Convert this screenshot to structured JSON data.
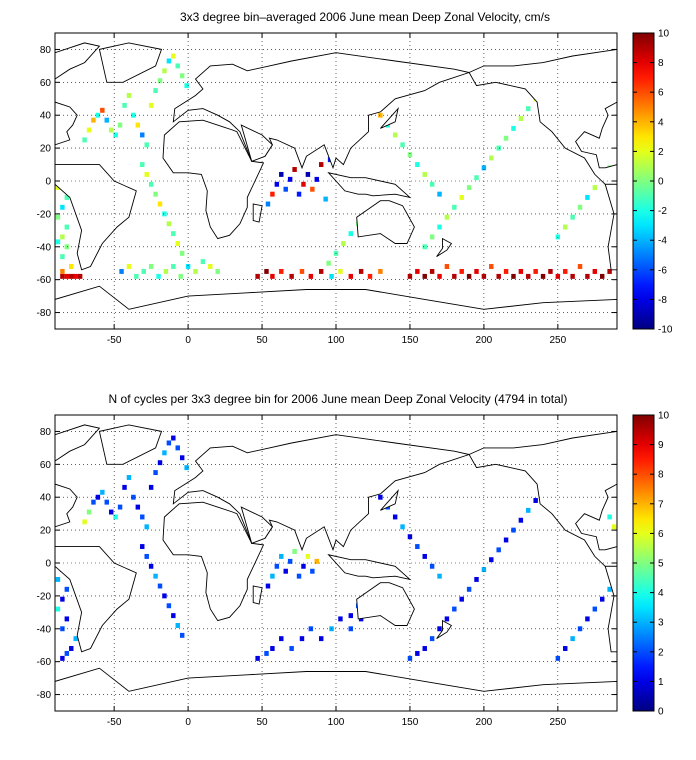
{
  "chart_data": [
    {
      "type": "heatmap",
      "title": "3x3 degree bin–averaged 2006 June mean Deep Zonal Velocity, cm/s",
      "xlabel": "",
      "ylabel": "",
      "xlim": [
        -90,
        290
      ],
      "ylim": [
        -90,
        90
      ],
      "x_ticks": [
        -50,
        0,
        50,
        100,
        150,
        200,
        250
      ],
      "y_ticks": [
        80,
        60,
        40,
        20,
        0,
        -20,
        -40,
        -60,
        -80
      ],
      "colorbar_ticks": [
        10,
        8,
        6,
        4,
        2,
        0,
        -2,
        -4,
        -6,
        -8,
        -10
      ],
      "clim": [
        -10,
        10
      ],
      "colormap": "jet",
      "grid": true,
      "bin_size_deg": 3,
      "cells": [
        [
          -85,
          -58,
          9
        ],
        [
          -82,
          -58,
          8
        ],
        [
          -79,
          -58,
          9
        ],
        [
          -76,
          -58,
          8
        ],
        [
          -73,
          -58,
          9
        ],
        [
          -85,
          -55,
          5
        ],
        [
          -79,
          -52,
          3
        ],
        [
          -85,
          -46,
          -1
        ],
        [
          -82,
          -40,
          0
        ],
        [
          -88,
          -37,
          -2
        ],
        [
          -85,
          -34,
          1
        ],
        [
          -82,
          -28,
          -1
        ],
        [
          -88,
          -22,
          0
        ],
        [
          -85,
          -16,
          -3
        ],
        [
          -82,
          -10,
          -1
        ],
        [
          -88,
          -4,
          2
        ],
        [
          -85,
          2,
          0
        ],
        [
          -70,
          25,
          -1
        ],
        [
          -67,
          31,
          2
        ],
        [
          -64,
          37,
          4
        ],
        [
          -61,
          40,
          -2
        ],
        [
          -58,
          43,
          6
        ],
        [
          -55,
          37,
          -4
        ],
        [
          -52,
          31,
          1
        ],
        [
          -49,
          28,
          -2
        ],
        [
          -46,
          34,
          0
        ],
        [
          -43,
          46,
          -1
        ],
        [
          -40,
          52,
          1
        ],
        [
          -37,
          40,
          -2
        ],
        [
          -34,
          34,
          3
        ],
        [
          -31,
          28,
          -5
        ],
        [
          -28,
          22,
          -1
        ],
        [
          -25,
          46,
          2
        ],
        [
          -22,
          55,
          -1
        ],
        [
          -19,
          61,
          0
        ],
        [
          -16,
          67,
          1
        ],
        [
          -13,
          73,
          -3
        ],
        [
          -10,
          76,
          2
        ],
        [
          -7,
          70,
          -1
        ],
        [
          -4,
          64,
          0
        ],
        [
          -1,
          58,
          -2
        ],
        [
          -31,
          10,
          -1
        ],
        [
          -28,
          4,
          2
        ],
        [
          -25,
          -2,
          -1
        ],
        [
          -22,
          -8,
          0
        ],
        [
          -19,
          -14,
          3
        ],
        [
          -16,
          -20,
          -2
        ],
        [
          -13,
          -26,
          1
        ],
        [
          -10,
          -32,
          -1
        ],
        [
          -7,
          -38,
          2
        ],
        [
          -4,
          -44,
          0
        ],
        [
          -45,
          -55,
          -5
        ],
        [
          -40,
          -52,
          2
        ],
        [
          -35,
          -58,
          -1
        ],
        [
          -30,
          -55,
          -1
        ],
        [
          -25,
          -52,
          0
        ],
        [
          -20,
          -58,
          -2
        ],
        [
          -15,
          -55,
          1
        ],
        [
          -10,
          -52,
          -1
        ],
        [
          -5,
          -58,
          0
        ],
        [
          0,
          -52,
          -3
        ],
        [
          5,
          -55,
          1
        ],
        [
          10,
          -49,
          -1
        ],
        [
          15,
          -52,
          2
        ],
        [
          20,
          -55,
          0
        ],
        [
          60,
          -2,
          -8
        ],
        [
          63,
          4,
          -9
        ],
        [
          66,
          -5,
          -6
        ],
        [
          69,
          1,
          -8
        ],
        [
          72,
          7,
          9
        ],
        [
          75,
          -8,
          -7
        ],
        [
          78,
          -2,
          8
        ],
        [
          81,
          4,
          -9
        ],
        [
          84,
          -5,
          6
        ],
        [
          87,
          1,
          -8
        ],
        [
          57,
          -8,
          7
        ],
        [
          54,
          -14,
          -5
        ],
        [
          90,
          10,
          9
        ],
        [
          93,
          -11,
          -4
        ],
        [
          96,
          13,
          -7
        ],
        [
          47,
          -58,
          9
        ],
        [
          53,
          -55,
          10
        ],
        [
          57,
          -58,
          8
        ],
        [
          63,
          -55,
          7
        ],
        [
          70,
          -58,
          9
        ],
        [
          77,
          -55,
          6
        ],
        [
          83,
          -58,
          8
        ],
        [
          90,
          -55,
          9
        ],
        [
          97,
          -58,
          -3
        ],
        [
          103,
          -55,
          2
        ],
        [
          110,
          -58,
          8
        ],
        [
          117,
          -55,
          9
        ],
        [
          123,
          -58,
          7
        ],
        [
          130,
          -55,
          5
        ],
        [
          150,
          -58,
          9
        ],
        [
          155,
          -55,
          8
        ],
        [
          160,
          -58,
          10
        ],
        [
          165,
          -55,
          9
        ],
        [
          170,
          -58,
          8
        ],
        [
          175,
          -52,
          6
        ],
        [
          180,
          -58,
          9
        ],
        [
          185,
          -55,
          7
        ],
        [
          190,
          -58,
          10
        ],
        [
          195,
          -55,
          8
        ],
        [
          200,
          -58,
          9
        ],
        [
          205,
          -52,
          6
        ],
        [
          210,
          -58,
          9
        ],
        [
          215,
          -55,
          7
        ],
        [
          220,
          -58,
          10
        ],
        [
          225,
          -55,
          8
        ],
        [
          230,
          -58,
          9
        ],
        [
          235,
          -55,
          7
        ],
        [
          240,
          -58,
          10
        ],
        [
          245,
          -55,
          9
        ],
        [
          250,
          -58,
          8
        ],
        [
          255,
          -55,
          7
        ],
        [
          260,
          -58,
          9
        ],
        [
          265,
          -52,
          6
        ],
        [
          270,
          -58,
          9
        ],
        [
          275,
          -55,
          8
        ],
        [
          280,
          -58,
          10
        ],
        [
          285,
          -55,
          9
        ],
        [
          160,
          -40,
          -1
        ],
        [
          165,
          -34,
          0
        ],
        [
          170,
          -28,
          -2
        ],
        [
          175,
          -22,
          1
        ],
        [
          180,
          -16,
          -1
        ],
        [
          185,
          -10,
          2
        ],
        [
          190,
          -4,
          0
        ],
        [
          195,
          2,
          -1
        ],
        [
          200,
          8,
          -4
        ],
        [
          205,
          14,
          1
        ],
        [
          210,
          20,
          -1
        ],
        [
          215,
          26,
          0
        ],
        [
          220,
          32,
          -2
        ],
        [
          225,
          38,
          1
        ],
        [
          230,
          44,
          -1
        ],
        [
          235,
          50,
          2
        ],
        [
          240,
          56,
          -1
        ],
        [
          245,
          62,
          0
        ],
        [
          250,
          -34,
          -2
        ],
        [
          255,
          -28,
          1
        ],
        [
          260,
          -22,
          -1
        ],
        [
          265,
          -16,
          0
        ],
        [
          270,
          -10,
          -3
        ],
        [
          275,
          -4,
          1
        ],
        [
          280,
          2,
          -1
        ],
        [
          285,
          8,
          0
        ],
        [
          130,
          40,
          4
        ],
        [
          135,
          34,
          -2
        ],
        [
          140,
          28,
          1
        ],
        [
          145,
          22,
          -1
        ],
        [
          150,
          16,
          0
        ],
        [
          155,
          10,
          -2
        ],
        [
          160,
          4,
          1
        ],
        [
          165,
          -2,
          -1
        ],
        [
          170,
          -8,
          -4
        ],
        [
          120,
          -20,
          -1
        ],
        [
          115,
          -26,
          0
        ],
        [
          110,
          -32,
          -2
        ],
        [
          105,
          -38,
          1
        ],
        [
          100,
          -44,
          -1
        ],
        [
          95,
          -50,
          0
        ]
      ]
    },
    {
      "type": "heatmap",
      "title": "N of cycles per 3x3 degree bin for 2006 June mean Deep Zonal Velocity (4794 in total)",
      "xlabel": "",
      "ylabel": "",
      "xlim": [
        -90,
        290
      ],
      "ylim": [
        -90,
        90
      ],
      "x_ticks": [
        -50,
        0,
        50,
        100,
        150,
        200,
        250
      ],
      "y_ticks": [
        80,
        60,
        40,
        20,
        0,
        -20,
        -40,
        -60,
        -80
      ],
      "colorbar_ticks": [
        10,
        9,
        8,
        7,
        6,
        5,
        4,
        3,
        2,
        1,
        0
      ],
      "clim": [
        0,
        10
      ],
      "colormap": "jet",
      "grid": true,
      "bin_size_deg": 3,
      "cells": [
        [
          -85,
          -58,
          1
        ],
        [
          -82,
          -55,
          2
        ],
        [
          -79,
          -52,
          1
        ],
        [
          -76,
          -46,
          3
        ],
        [
          -85,
          -40,
          2
        ],
        [
          -82,
          -34,
          1
        ],
        [
          -88,
          -28,
          4
        ],
        [
          -85,
          -22,
          1
        ],
        [
          -82,
          -16,
          2
        ],
        [
          -88,
          -10,
          3
        ],
        [
          -85,
          -4,
          1
        ],
        [
          -82,
          2,
          2
        ],
        [
          -70,
          25,
          6
        ],
        [
          -67,
          31,
          5
        ],
        [
          -64,
          37,
          2
        ],
        [
          -61,
          40,
          1
        ],
        [
          -58,
          43,
          3
        ],
        [
          -55,
          37,
          2
        ],
        [
          -52,
          31,
          1
        ],
        [
          -49,
          28,
          4
        ],
        [
          -46,
          34,
          2
        ],
        [
          -43,
          46,
          1
        ],
        [
          -40,
          52,
          3
        ],
        [
          -37,
          40,
          2
        ],
        [
          -34,
          34,
          1
        ],
        [
          -31,
          28,
          2
        ],
        [
          -28,
          22,
          3
        ],
        [
          -25,
          46,
          1
        ],
        [
          -22,
          55,
          2
        ],
        [
          -19,
          61,
          1
        ],
        [
          -16,
          67,
          3
        ],
        [
          -13,
          73,
          2
        ],
        [
          -10,
          76,
          1
        ],
        [
          -7,
          70,
          2
        ],
        [
          -4,
          64,
          1
        ],
        [
          -1,
          58,
          3
        ],
        [
          -31,
          10,
          1
        ],
        [
          -28,
          4,
          2
        ],
        [
          -25,
          -2,
          1
        ],
        [
          -22,
          -8,
          3
        ],
        [
          -19,
          -14,
          2
        ],
        [
          -16,
          -20,
          1
        ],
        [
          -13,
          -26,
          2
        ],
        [
          -10,
          -32,
          1
        ],
        [
          -7,
          -38,
          3
        ],
        [
          -4,
          -44,
          2
        ],
        [
          60,
          -2,
          2
        ],
        [
          63,
          4,
          3
        ],
        [
          66,
          -5,
          1
        ],
        [
          69,
          1,
          2
        ],
        [
          72,
          7,
          5
        ],
        [
          75,
          -8,
          2
        ],
        [
          78,
          -2,
          1
        ],
        [
          81,
          4,
          6
        ],
        [
          84,
          -5,
          2
        ],
        [
          87,
          1,
          7
        ],
        [
          57,
          -8,
          3
        ],
        [
          54,
          -14,
          1
        ],
        [
          47,
          -58,
          1
        ],
        [
          53,
          -55,
          2
        ],
        [
          57,
          -52,
          1
        ],
        [
          63,
          -46,
          1
        ],
        [
          70,
          -52,
          2
        ],
        [
          77,
          -46,
          1
        ],
        [
          83,
          -40,
          2
        ],
        [
          90,
          -46,
          1
        ],
        [
          97,
          -40,
          3
        ],
        [
          103,
          -34,
          1
        ],
        [
          110,
          -40,
          2
        ],
        [
          117,
          -34,
          1
        ],
        [
          123,
          -28,
          2
        ],
        [
          150,
          -58,
          2
        ],
        [
          155,
          -55,
          1
        ],
        [
          160,
          -52,
          1
        ],
        [
          165,
          -46,
          2
        ],
        [
          170,
          -40,
          1
        ],
        [
          175,
          -34,
          1
        ],
        [
          180,
          -28,
          2
        ],
        [
          185,
          -22,
          1
        ],
        [
          190,
          -16,
          2
        ],
        [
          195,
          -10,
          1
        ],
        [
          200,
          -4,
          3
        ],
        [
          205,
          2,
          1
        ],
        [
          210,
          8,
          2
        ],
        [
          215,
          14,
          1
        ],
        [
          220,
          20,
          2
        ],
        [
          225,
          26,
          1
        ],
        [
          230,
          32,
          3
        ],
        [
          235,
          38,
          1
        ],
        [
          240,
          44,
          2
        ],
        [
          245,
          50,
          1
        ],
        [
          250,
          -58,
          2
        ],
        [
          255,
          -52,
          1
        ],
        [
          260,
          -46,
          3
        ],
        [
          265,
          -40,
          2
        ],
        [
          270,
          -34,
          1
        ],
        [
          275,
          -28,
          2
        ],
        [
          280,
          -22,
          1
        ],
        [
          285,
          -16,
          3
        ],
        [
          288,
          22,
          6
        ],
        [
          285,
          28,
          4
        ],
        [
          130,
          40,
          1
        ],
        [
          135,
          34,
          2
        ],
        [
          140,
          28,
          1
        ],
        [
          145,
          22,
          3
        ],
        [
          150,
          16,
          1
        ],
        [
          155,
          10,
          2
        ],
        [
          160,
          4,
          1
        ],
        [
          165,
          -2,
          2
        ],
        [
          170,
          -8,
          3
        ],
        [
          120,
          -20,
          1
        ],
        [
          115,
          -26,
          2
        ],
        [
          110,
          -32,
          1
        ]
      ]
    }
  ]
}
